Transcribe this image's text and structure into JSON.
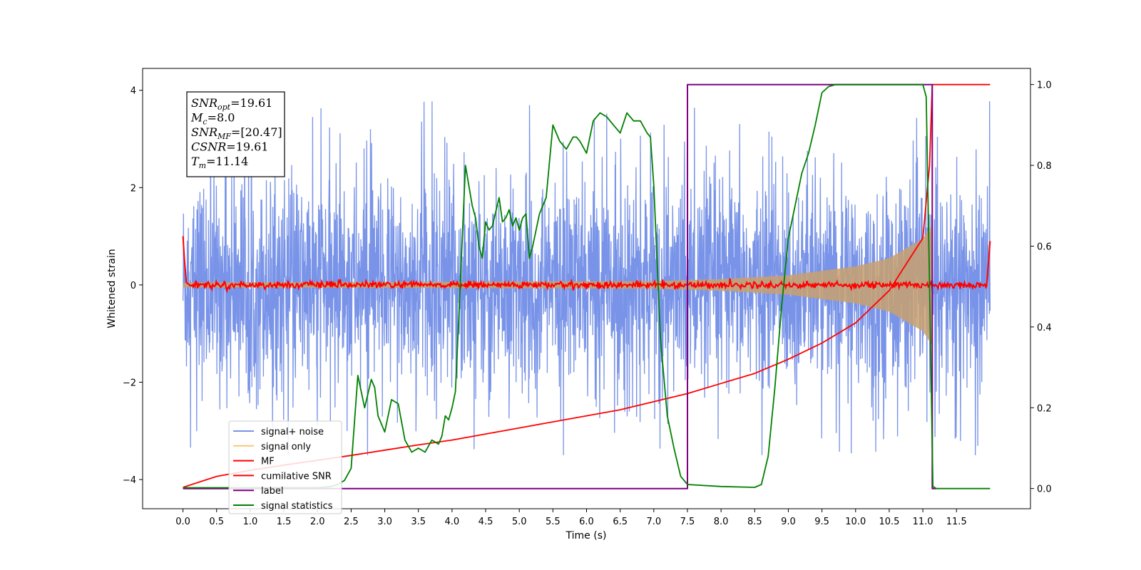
{
  "chart_data": {
    "type": "line",
    "xlabel": "Time (s)",
    "ylabel_left": "Whitened strain",
    "ylabel_right": "",
    "xlim": [
      -0.6,
      12.6
    ],
    "ylim_left": [
      -4.6,
      4.45
    ],
    "ylim_right": [
      -0.05,
      1.04
    ],
    "x_ticks": [
      "0.0",
      "0.5",
      "1.0",
      "1.5",
      "2.0",
      "2.5",
      "3.0",
      "3.5",
      "4.0",
      "4.5",
      "5.0",
      "5.5",
      "6.0",
      "6.5",
      "7.0",
      "7.5",
      "8.0",
      "8.5",
      "9.0",
      "9.5",
      "10.0",
      "10.5",
      "11.0",
      "11.5"
    ],
    "y_ticks_left": [
      "4",
      "2",
      "0",
      "−2",
      "−4"
    ],
    "y_ticks_right": [
      "1.0",
      "0.8",
      "0.6",
      "0.4",
      "0.2",
      "0.0"
    ],
    "grid": false,
    "annotation": {
      "lines": [
        {
          "base": "SNR",
          "sub": "opt",
          "value": "=19.61"
        },
        {
          "base": "M",
          "sub": "c",
          "value": "=8.0"
        },
        {
          "base": "SNR",
          "sub": "MF",
          "value": "=[20.47]"
        },
        {
          "base": "CSNR",
          "sub": "",
          "value": "=19.61"
        },
        {
          "base": "T",
          "sub": "m",
          "value": "=11.14"
        }
      ]
    },
    "legend": {
      "placement": "lower-left",
      "entries": [
        {
          "label": "signal+ noise",
          "color": "#7893e8"
        },
        {
          "label": "signal only",
          "color": "#f8c879"
        },
        {
          "label": "MF",
          "color": "#ff0000"
        },
        {
          "label": "cumilative SNR",
          "color": "#ff0000"
        },
        {
          "label": "label",
          "color": "#800080"
        },
        {
          "label": "signal statistics",
          "color": "#008000"
        }
      ]
    },
    "series": [
      {
        "name": "signal+ noise",
        "axis": "left",
        "color": "#7893e8",
        "description_stats": {
          "x_range": [
            0.0,
            12.0
          ],
          "typical_amplitude": 1.7,
          "max": 4.05,
          "min": -3.5
        }
      },
      {
        "name": "signal only",
        "axis": "left",
        "color": "#c8a06e",
        "envelope": {
          "x": [
            0.0,
            7.0,
            8.0,
            9.0,
            10.0,
            10.5,
            11.0,
            11.14
          ],
          "amplitude": [
            0.05,
            0.08,
            0.12,
            0.2,
            0.38,
            0.55,
            0.95,
            1.25
          ]
        }
      },
      {
        "name": "MF",
        "axis": "left",
        "color": "#ff0000",
        "x": [
          0.0,
          0.02,
          0.05,
          0.1,
          12.0
        ],
        "y": [
          1.0,
          0.55,
          0.05,
          0.0,
          0.0
        ],
        "end_spike": {
          "x": [
            11.95,
            12.0
          ],
          "y": [
            0.0,
            0.9
          ]
        }
      },
      {
        "name": "cumilative SNR",
        "axis": "right",
        "color": "#ff0000",
        "x": [
          0.0,
          0.5,
          1.0,
          1.5,
          2.0,
          2.5,
          3.0,
          3.5,
          4.0,
          4.5,
          5.0,
          5.5,
          6.0,
          6.5,
          7.0,
          7.5,
          8.0,
          8.5,
          9.0,
          9.5,
          10.0,
          10.5,
          11.0,
          11.1,
          11.14,
          12.0
        ],
        "y": [
          0.003,
          0.03,
          0.045,
          0.058,
          0.07,
          0.082,
          0.095,
          0.108,
          0.12,
          0.135,
          0.15,
          0.165,
          0.18,
          0.195,
          0.215,
          0.235,
          0.26,
          0.285,
          0.32,
          0.36,
          0.41,
          0.49,
          0.62,
          0.8,
          1.0,
          1.0
        ]
      },
      {
        "name": "label",
        "axis": "right",
        "color": "#800080",
        "x": [
          0.0,
          7.5,
          7.5,
          11.14,
          11.14,
          11.2
        ],
        "y": [
          0.0,
          0.0,
          1.0,
          1.0,
          0.0,
          0.0
        ]
      },
      {
        "name": "signal statistics",
        "axis": "right",
        "color": "#008000",
        "x": [
          0.0,
          1.0,
          2.0,
          2.2,
          2.3,
          2.4,
          2.5,
          2.6,
          2.7,
          2.8,
          2.85,
          2.9,
          3.0,
          3.1,
          3.2,
          3.3,
          3.4,
          3.5,
          3.6,
          3.7,
          3.8,
          3.85,
          3.9,
          3.95,
          4.0,
          4.05,
          4.1,
          4.2,
          4.3,
          4.35,
          4.4,
          4.45,
          4.5,
          4.55,
          4.6,
          4.7,
          4.75,
          4.8,
          4.85,
          4.9,
          4.95,
          5.0,
          5.05,
          5.1,
          5.15,
          5.2,
          5.3,
          5.4,
          5.5,
          5.6,
          5.7,
          5.8,
          5.85,
          5.9,
          6.0,
          6.1,
          6.2,
          6.3,
          6.4,
          6.5,
          6.6,
          6.7,
          6.8,
          6.9,
          6.95,
          7.0,
          7.1,
          7.2,
          7.3,
          7.4,
          7.5,
          8.0,
          8.5,
          8.6,
          8.7,
          8.8,
          8.9,
          9.0,
          9.1,
          9.2,
          9.3,
          9.4,
          9.5,
          9.6,
          9.7,
          10.0,
          10.5,
          11.0,
          11.05,
          11.1,
          11.15,
          11.2,
          12.0
        ],
        "y": [
          0.002,
          0.002,
          0.002,
          0.005,
          0.01,
          0.02,
          0.05,
          0.28,
          0.2,
          0.27,
          0.25,
          0.18,
          0.14,
          0.22,
          0.21,
          0.12,
          0.09,
          0.1,
          0.09,
          0.12,
          0.11,
          0.13,
          0.18,
          0.17,
          0.2,
          0.24,
          0.42,
          0.8,
          0.7,
          0.67,
          0.6,
          0.57,
          0.66,
          0.64,
          0.65,
          0.72,
          0.66,
          0.67,
          0.69,
          0.65,
          0.67,
          0.64,
          0.67,
          0.68,
          0.57,
          0.6,
          0.68,
          0.72,
          0.9,
          0.86,
          0.84,
          0.87,
          0.87,
          0.86,
          0.83,
          0.91,
          0.93,
          0.92,
          0.9,
          0.88,
          0.93,
          0.91,
          0.91,
          0.88,
          0.87,
          0.75,
          0.37,
          0.18,
          0.1,
          0.03,
          0.01,
          0.005,
          0.003,
          0.01,
          0.08,
          0.25,
          0.45,
          0.62,
          0.7,
          0.78,
          0.83,
          0.9,
          0.98,
          0.995,
          1.0,
          1.0,
          1.0,
          1.0,
          0.97,
          0.5,
          0.005,
          0.0,
          0.0
        ]
      }
    ]
  }
}
